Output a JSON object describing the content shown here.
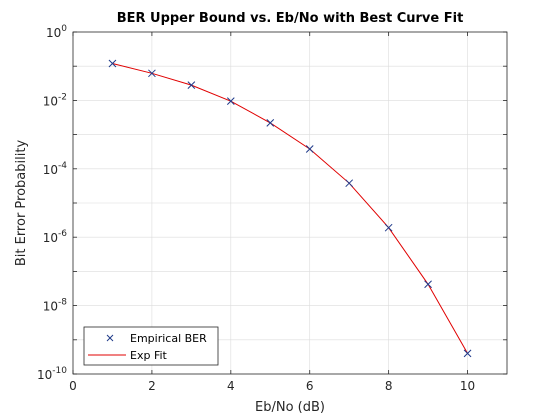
{
  "chart_data": {
    "type": "line",
    "title": "BER Upper Bound vs. Eb/No with Best Curve Fit",
    "xlabel": "Eb/No (dB)",
    "ylabel": "Bit Error Probability",
    "xlim": [
      0,
      11
    ],
    "ylim": [
      1e-10,
      1
    ],
    "yscale": "log",
    "grid": true,
    "legend_position": "bottom-left",
    "x_ticks": [
      "0",
      "2",
      "4",
      "6",
      "8",
      "10"
    ],
    "x_tick_values": [
      0,
      2,
      4,
      6,
      8,
      10
    ],
    "y_ticks": [
      {
        "base": "10",
        "exp": "0",
        "value": 1
      },
      {
        "base": "10",
        "exp": "-2",
        "value": 0.01
      },
      {
        "base": "10",
        "exp": "-4",
        "value": 0.0001
      },
      {
        "base": "10",
        "exp": "-6",
        "value": 1e-06
      },
      {
        "base": "10",
        "exp": "-8",
        "value": 1e-08
      },
      {
        "base": "10",
        "exp": "-10",
        "value": 1e-10
      }
    ],
    "x": [
      1,
      2,
      3,
      4,
      5,
      6,
      7,
      8,
      9,
      10
    ],
    "series": [
      {
        "name": "Empirical BER",
        "style": "marker-x",
        "color": "#1f3a8a",
        "values": [
          0.12,
          0.062,
          0.028,
          0.0095,
          0.0022,
          0.00038,
          3.8e-05,
          1.9e-06,
          4.2e-08,
          4e-10
        ]
      },
      {
        "name": "Exp Fit",
        "style": "line",
        "color": "#e00000",
        "values": [
          0.12,
          0.062,
          0.028,
          0.0095,
          0.0022,
          0.00038,
          3.8e-05,
          1.9e-06,
          4.2e-08,
          4e-10
        ]
      }
    ]
  }
}
